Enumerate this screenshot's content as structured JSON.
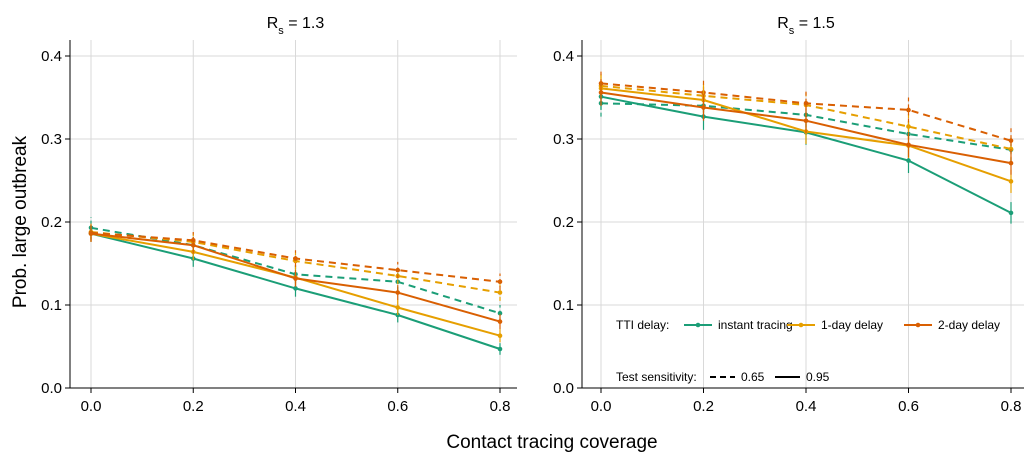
{
  "chart_data": {
    "type": "line",
    "xlabel": "Contact tracing coverage",
    "ylabel": "Prob. large outbreak",
    "xlim": [
      0,
      0.8
    ],
    "ylim": [
      0,
      0.4
    ],
    "x": [
      0.0,
      0.2,
      0.4,
      0.6,
      0.8
    ],
    "x_ticks": [
      "0.0",
      "0.2",
      "0.4",
      "0.6",
      "0.8"
    ],
    "y_ticks": [
      "0.0",
      "0.1",
      "0.2",
      "0.3",
      "0.4"
    ],
    "grid": true,
    "colors": {
      "instant tracing": "#1b9e77",
      "1-day delay": "#e69f00",
      "2-day delay": "#d95f02"
    },
    "legend": {
      "placement": "bottom-right of right panel",
      "delay_title": "TTI delay:",
      "delay_items": [
        "instant tracing",
        "1-day delay",
        "2-day delay"
      ],
      "sensitivity_title": "Test sensitivity:",
      "sensitivity_items": [
        {
          "label": "0.65",
          "style": "dashed"
        },
        {
          "label": "0.95",
          "style": "solid"
        }
      ]
    },
    "panels": [
      {
        "title_main": "R",
        "title_sub": "s",
        "title_rest": " = 1.3",
        "series": [
          {
            "delay": "instant tracing",
            "sensitivity": "0.95",
            "values": [
              0.186,
              0.156,
              0.12,
              0.088,
              0.047
            ],
            "err": [
              0.01,
              0.01,
              0.01,
              0.009,
              0.007
            ]
          },
          {
            "delay": "instant tracing",
            "sensitivity": "0.65",
            "values": [
              0.193,
              0.172,
              0.137,
              0.128,
              0.09
            ],
            "err": [
              0.013,
              0.012,
              0.011,
              0.011,
              0.01
            ]
          },
          {
            "delay": "1-day delay",
            "sensitivity": "0.95",
            "values": [
              0.186,
              0.164,
              0.133,
              0.097,
              0.063
            ],
            "err": [
              0.01,
              0.01,
              0.01,
              0.009,
              0.008
            ]
          },
          {
            "delay": "1-day delay",
            "sensitivity": "0.65",
            "values": [
              0.188,
              0.176,
              0.153,
              0.135,
              0.115
            ],
            "err": [
              0.01,
              0.01,
              0.01,
              0.01,
              0.01
            ]
          },
          {
            "delay": "2-day delay",
            "sensitivity": "0.95",
            "values": [
              0.186,
              0.172,
              0.132,
              0.115,
              0.08
            ],
            "err": [
              0.01,
              0.01,
              0.01,
              0.009,
              0.009
            ]
          },
          {
            "delay": "2-day delay",
            "sensitivity": "0.65",
            "values": [
              0.187,
              0.178,
              0.156,
              0.142,
              0.128
            ],
            "err": [
              0.01,
              0.01,
              0.01,
              0.01,
              0.01
            ]
          }
        ]
      },
      {
        "title_main": "R",
        "title_sub": "s",
        "title_rest": " = 1.5",
        "series": [
          {
            "delay": "instant tracing",
            "sensitivity": "0.95",
            "values": [
              0.351,
              0.327,
              0.308,
              0.274,
              0.211
            ],
            "err": [
              0.016,
              0.016,
              0.015,
              0.015,
              0.013
            ]
          },
          {
            "delay": "instant tracing",
            "sensitivity": "0.65",
            "values": [
              0.343,
              0.34,
              0.329,
              0.306,
              0.287
            ],
            "err": [
              0.016,
              0.016,
              0.015,
              0.015,
              0.014
            ]
          },
          {
            "delay": "1-day delay",
            "sensitivity": "0.95",
            "values": [
              0.361,
              0.347,
              0.309,
              0.292,
              0.249
            ],
            "err": [
              0.016,
              0.016,
              0.015,
              0.015,
              0.014
            ]
          },
          {
            "delay": "1-day delay",
            "sensitivity": "0.65",
            "values": [
              0.364,
              0.352,
              0.341,
              0.315,
              0.288
            ],
            "err": [
              0.016,
              0.016,
              0.015,
              0.015,
              0.014
            ]
          },
          {
            "delay": "2-day delay",
            "sensitivity": "0.95",
            "values": [
              0.356,
              0.338,
              0.322,
              0.293,
              0.271
            ],
            "err": [
              0.016,
              0.016,
              0.015,
              0.015,
              0.014
            ]
          },
          {
            "delay": "2-day delay",
            "sensitivity": "0.65",
            "values": [
              0.367,
              0.356,
              0.343,
              0.335,
              0.298
            ],
            "err": [
              0.016,
              0.016,
              0.016,
              0.015,
              0.015
            ]
          }
        ]
      }
    ]
  }
}
